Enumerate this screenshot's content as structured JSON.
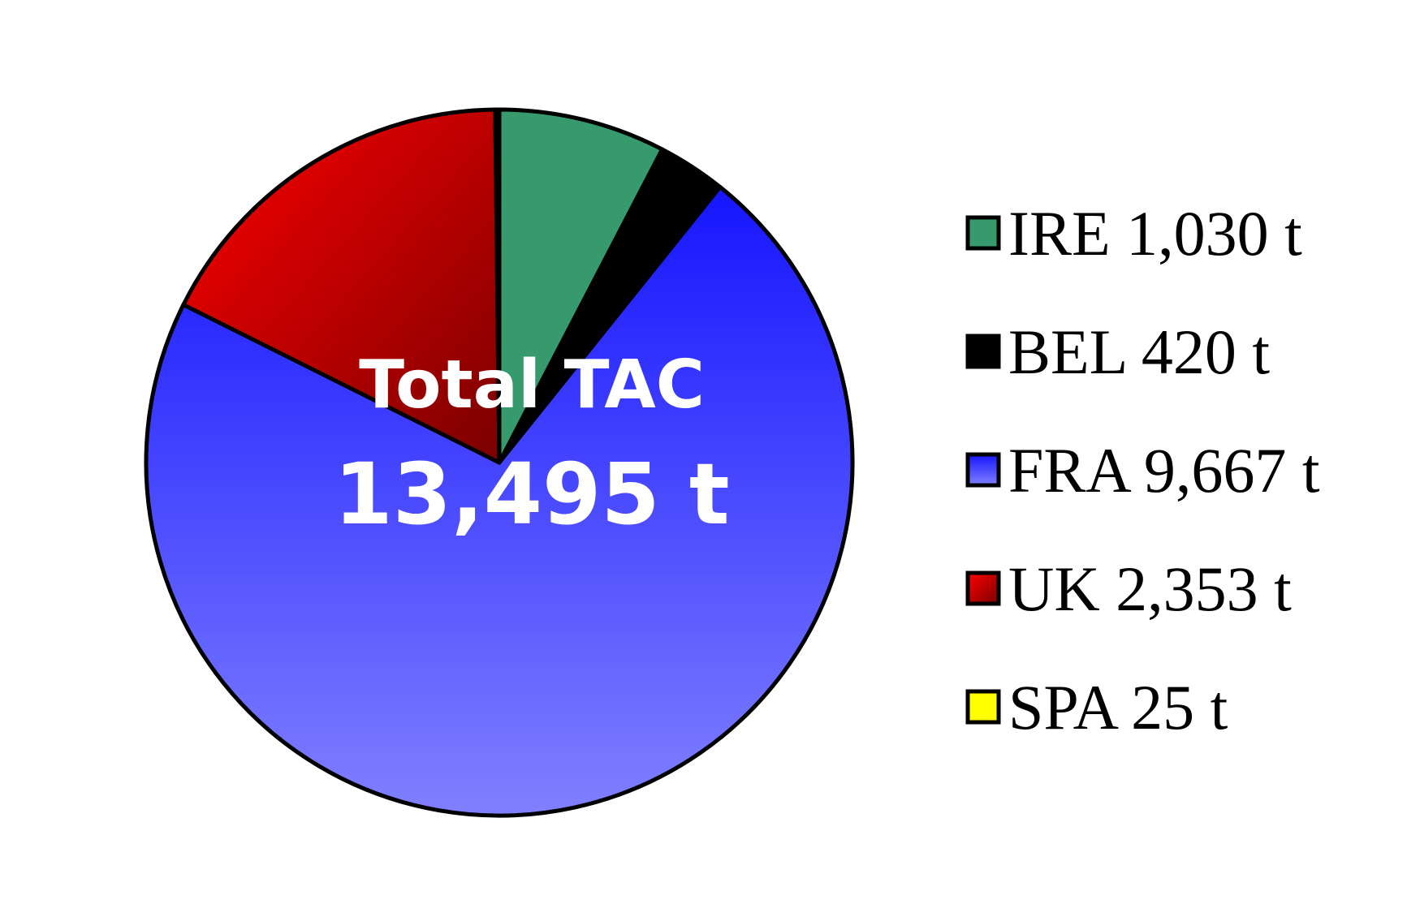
{
  "chart_data": {
    "type": "pie",
    "center_label": {
      "title": "Total TAC",
      "total": "13,495 t"
    },
    "slices": [
      {
        "label": "IRE 1,030 t",
        "name": "IRE",
        "value": 1030,
        "color": "#369A6C"
      },
      {
        "label": "BEL 420 t",
        "name": "BEL",
        "value": 420,
        "color": "#000000"
      },
      {
        "label": "FRA 9,667 t",
        "name": "FRA",
        "value": 9667,
        "color": "#4A4AFF",
        "gradient": [
          "#1515FF",
          "#8080FF"
        ]
      },
      {
        "label": "UK 2,353 t",
        "name": "UK",
        "value": 2353,
        "color": "#C00000",
        "gradient": [
          "#FF0000",
          "#7A0000"
        ]
      },
      {
        "label": "SPA 25 t",
        "name": "SPA",
        "value": 25,
        "color": "#FFFF00"
      }
    ],
    "legend_position": "right"
  }
}
